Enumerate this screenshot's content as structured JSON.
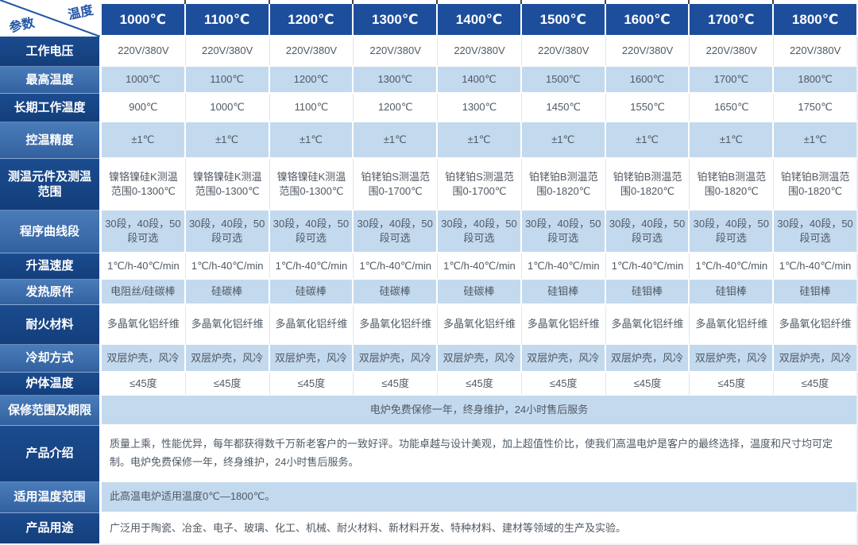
{
  "table": {
    "corner": {
      "top": "温度",
      "bottom": "参数"
    },
    "columns": [
      "1000℃",
      "1100℃",
      "1200℃",
      "1300℃",
      "1400℃",
      "1500℃",
      "1600℃",
      "1700℃",
      "1800℃"
    ],
    "rows": [
      {
        "label": "工作电压",
        "cells": [
          "220V/380V",
          "220V/380V",
          "220V/380V",
          "220V/380V",
          "220V/380V",
          "220V/380V",
          "220V/380V",
          "220V/380V",
          "220V/380V"
        ]
      },
      {
        "label": "最高温度",
        "cells": [
          "1000℃",
          "1100℃",
          "1200℃",
          "1300℃",
          "1400℃",
          "1500℃",
          "1600℃",
          "1700℃",
          "1800℃"
        ]
      },
      {
        "label": "长期工作温度",
        "cells": [
          "900℃",
          "1000℃",
          "1100℃",
          "1200℃",
          "1300℃",
          "1450℃",
          "1550℃",
          "1650℃",
          "1750℃"
        ]
      },
      {
        "label": "控温精度",
        "cells": [
          "±1℃",
          "±1℃",
          "±1℃",
          "±1℃",
          "±1℃",
          "±1℃",
          "±1℃",
          "±1℃",
          "±1℃"
        ]
      },
      {
        "label": "测温元件及测温范围",
        "cells": [
          "镍铬镍硅K测温范围0-1300℃",
          "镍铬镍硅K测温范围0-1300℃",
          "镍铬镍硅K测温范围0-1300℃",
          "铂铑铂S测温范围0-1700℃",
          "铂铑铂S测温范围0-1700℃",
          "铂铑铂B测温范围0-1820℃",
          "铂铑铂B测温范围0-1820℃",
          "铂铑铂B测温范围0-1820℃",
          "铂铑铂B测温范围0-1820℃"
        ]
      },
      {
        "label": "程序曲线段",
        "cells": [
          "30段，40段，50段可选",
          "30段，40段，50段可选",
          "30段，40段，50段可选",
          "30段，40段，50段可选",
          "30段，40段，50段可选",
          "30段，40段，50段可选",
          "30段，40段，50段可选",
          "30段，40段，50段可选",
          "30段，40段，50段可选"
        ]
      },
      {
        "label": "升温速度",
        "cells": [
          "1℃/h-40℃/min",
          "1℃/h-40℃/min",
          "1℃/h-40℃/min",
          "1℃/h-40℃/min",
          "1℃/h-40℃/min",
          "1℃/h-40℃/min",
          "1℃/h-40℃/min",
          "1℃/h-40℃/min",
          "1℃/h-40℃/min"
        ]
      },
      {
        "label": "发热原件",
        "cells": [
          "电阻丝/硅碳棒",
          "硅碳棒",
          "硅碳棒",
          "硅碳棒",
          "硅碳棒",
          "硅钼棒",
          "硅钼棒",
          "硅钼棒",
          "硅钼棒"
        ]
      },
      {
        "label": "耐火材料",
        "cells": [
          "多晶氧化铝纤维",
          "多晶氧化铝纤维",
          "多晶氧化铝纤维",
          "多晶氧化铝纤维",
          "多晶氧化铝纤维",
          "多晶氧化铝纤维",
          "多晶氧化铝纤维",
          "多晶氧化铝纤维",
          "多晶氧化铝纤维"
        ]
      },
      {
        "label": "冷却方式",
        "cells": [
          "双层炉壳，风冷",
          "双层炉壳，风冷",
          "双层炉壳，风冷",
          "双层炉壳，风冷",
          "双层炉壳，风冷",
          "双层炉壳，风冷",
          "双层炉壳，风冷",
          "双层炉壳，风冷",
          "双层炉壳，风冷"
        ]
      },
      {
        "label": "炉体温度",
        "cells": [
          "≤45度",
          "≤45度",
          "≤45度",
          "≤45度",
          "≤45度",
          "≤45度",
          "≤45度",
          "≤45度",
          "≤45度"
        ]
      }
    ],
    "span_rows": [
      {
        "label": "保修范围及期限",
        "align": "center",
        "text": "电炉免费保修一年，终身维护，24小时售后服务"
      },
      {
        "label": "产品介绍",
        "align": "left",
        "text": "质量上乘，性能优异，每年都获得数千万新老客户的一致好评。功能卓越与设计美观，加上超值性价比，使我们高温电炉是客户的最终选择，温度和尺寸均可定制。电炉免费保修一年，终身维护，24小时售后服务。"
      },
      {
        "label": "适用温度范围",
        "align": "left",
        "text": "此高温电炉适用温度0℃—1800℃。"
      },
      {
        "label": "产品用途",
        "align": "left",
        "text": "广泛用于陶瓷、冶金、电子、玻璃、化工、机械、耐火材料、新材料开发、特种材料、建材等领域的生产及实验。"
      }
    ]
  },
  "colors": {
    "header_bg": "#1d4e9b",
    "label_dark_top": "#1b4c8f",
    "label_dark_bottom": "#133e7b",
    "label_mid_top": "#4a7cba",
    "label_mid_bottom": "#33619f",
    "row_alt_bg": "#c3d9ee",
    "cell_text": "#4f5963",
    "accent_blue": "#2257a8"
  }
}
